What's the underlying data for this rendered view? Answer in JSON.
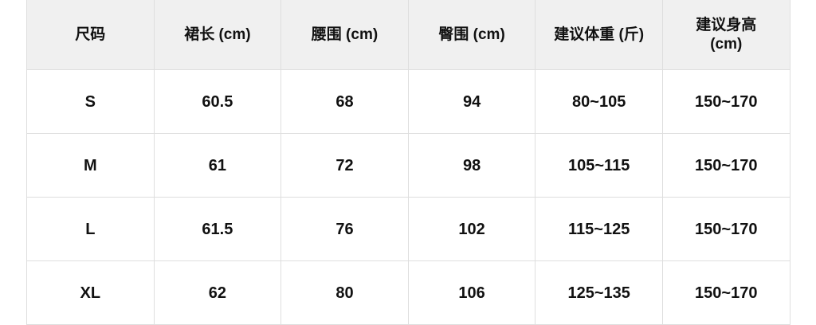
{
  "table": {
    "headers": [
      "尺码",
      "裙长 (cm)",
      "腰围 (cm)",
      "臀围 (cm)",
      "建议体重 (斤)",
      "建议身高 (cm)"
    ],
    "rows": [
      [
        "S",
        "60.5",
        "68",
        "94",
        "80~105",
        "150~170"
      ],
      [
        "M",
        "61",
        "72",
        "98",
        "105~115",
        "150~170"
      ],
      [
        "L",
        "61.5",
        "76",
        "102",
        "115~125",
        "150~170"
      ],
      [
        "XL",
        "62",
        "80",
        "106",
        "125~135",
        "150~170"
      ]
    ]
  },
  "colors": {
    "header_bg": "#f0f0f0",
    "border": "#dedede",
    "text": "#111111"
  }
}
